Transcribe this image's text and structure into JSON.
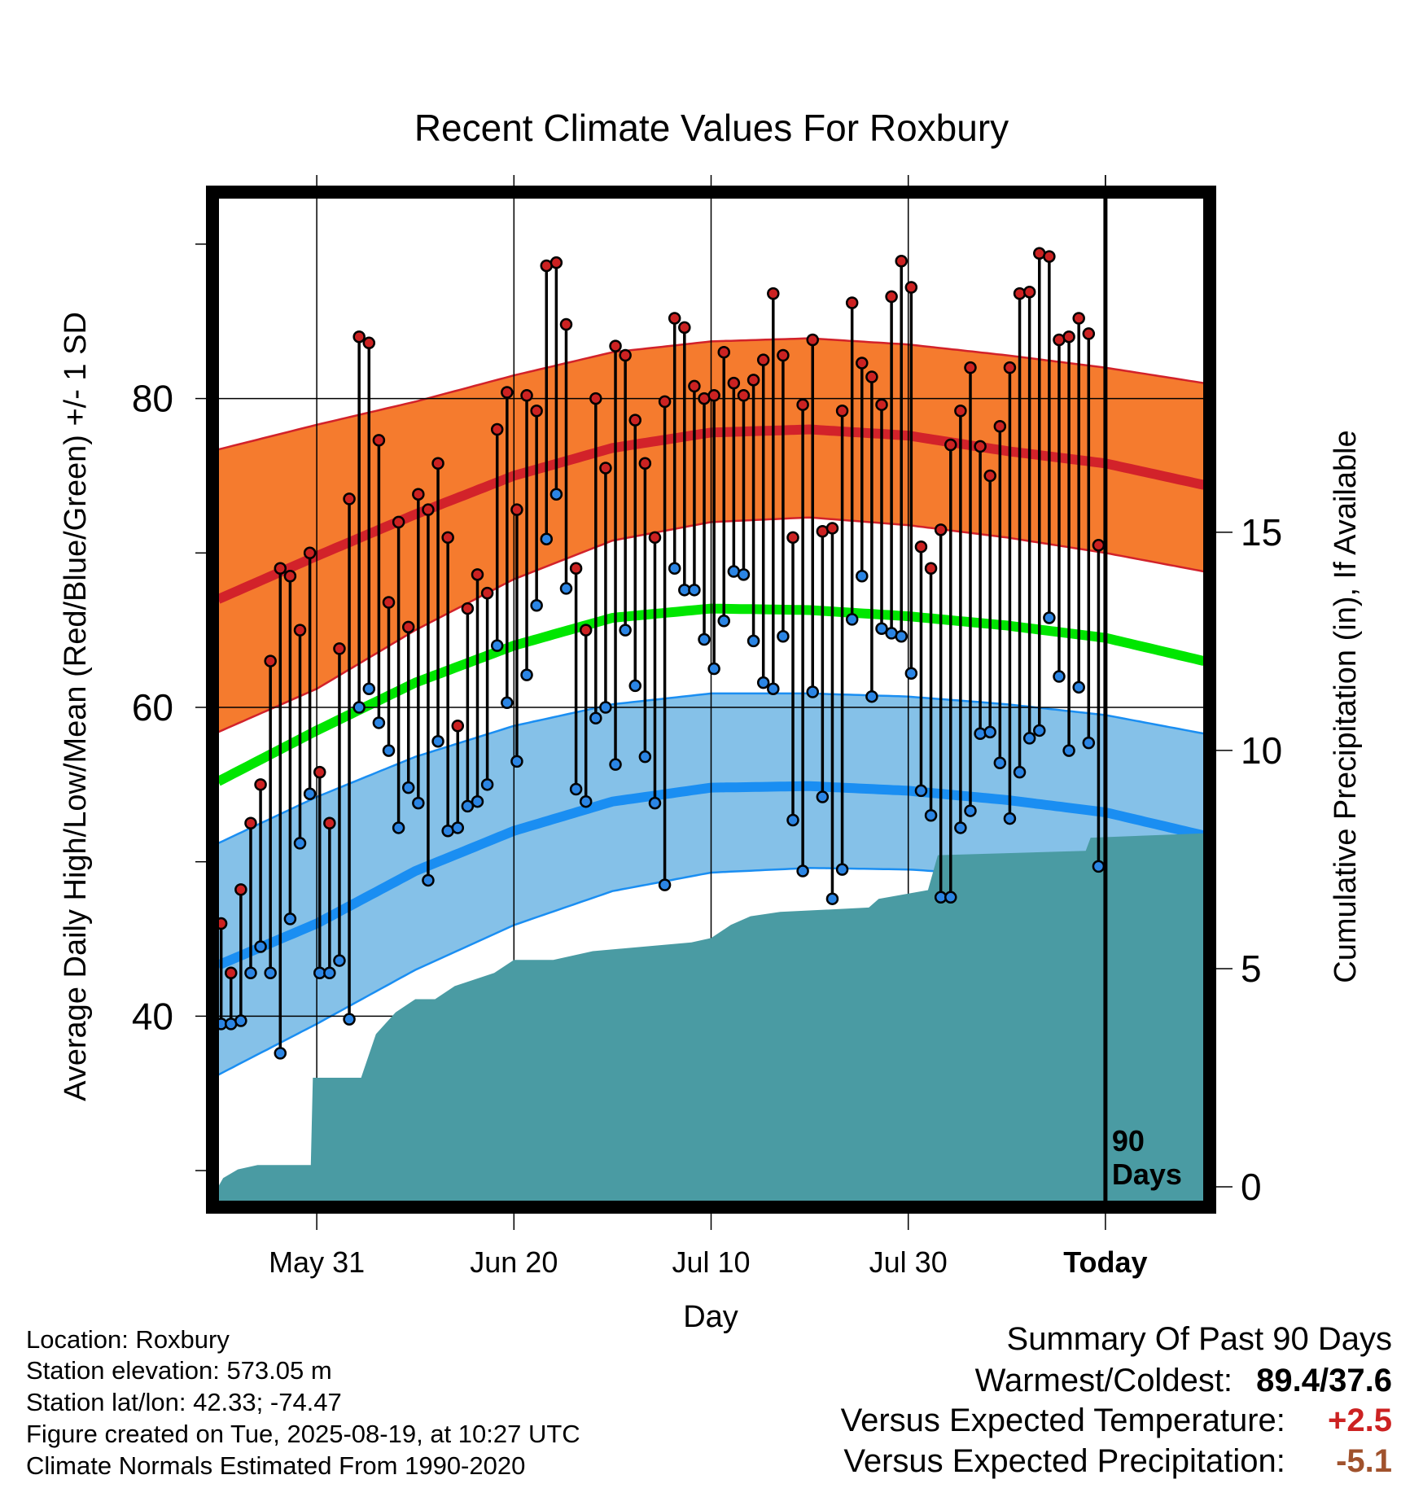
{
  "chart_data": {
    "type": "line",
    "title": "Recent Climate Values For Roxbury",
    "xlabel": "Day",
    "ylabel": "Average Daily High/Low/Mean (Red/Blue/Green) +/- 1 SD",
    "y2label": "Cumulative Precipitation (in), If Available",
    "xlim": [
      0,
      100
    ],
    "ylim": [
      28,
      93
    ],
    "y2lim": [
      0,
      23
    ],
    "x_tick_labels": [
      {
        "label": "May 31",
        "x": 10
      },
      {
        "label": "Jun 20",
        "x": 30
      },
      {
        "label": "Jul 10",
        "x": 50
      },
      {
        "label": "Jul 30",
        "x": 70
      },
      {
        "label": "Today",
        "x": 90
      }
    ],
    "y_ticks_major": [
      40,
      60,
      80
    ],
    "y2_ticks": [
      0,
      5,
      10,
      15
    ],
    "today_x": 90,
    "today_label_line1": "90",
    "today_label_line2": "Days",
    "normal_high_mean": [
      [
        0,
        67.0
      ],
      [
        10,
        69.8
      ],
      [
        20,
        72.5
      ],
      [
        30,
        75.0
      ],
      [
        40,
        76.8
      ],
      [
        50,
        77.8
      ],
      [
        60,
        78.0
      ],
      [
        70,
        77.6
      ],
      [
        80,
        76.6
      ],
      [
        90,
        75.8
      ],
      [
        100,
        74.4
      ]
    ],
    "normal_high_upper": [
      [
        0,
        76.7
      ],
      [
        10,
        78.3
      ],
      [
        20,
        79.8
      ],
      [
        30,
        81.5
      ],
      [
        40,
        83.0
      ],
      [
        50,
        83.7
      ],
      [
        60,
        83.9
      ],
      [
        70,
        83.5
      ],
      [
        80,
        82.8
      ],
      [
        90,
        82.0
      ],
      [
        100,
        81.0
      ]
    ],
    "normal_high_lower": [
      [
        0,
        58.4
      ],
      [
        10,
        61.2
      ],
      [
        20,
        65.0
      ],
      [
        30,
        68.3
      ],
      [
        40,
        70.8
      ],
      [
        50,
        72.0
      ],
      [
        60,
        72.3
      ],
      [
        70,
        71.8
      ],
      [
        80,
        71.0
      ],
      [
        90,
        70.0
      ],
      [
        100,
        68.8
      ]
    ],
    "normal_mean": [
      [
        0,
        55.2
      ],
      [
        10,
        58.5
      ],
      [
        20,
        61.6
      ],
      [
        30,
        64.0
      ],
      [
        40,
        65.8
      ],
      [
        50,
        66.4
      ],
      [
        60,
        66.3
      ],
      [
        70,
        65.9
      ],
      [
        80,
        65.3
      ],
      [
        90,
        64.5
      ],
      [
        100,
        63.0
      ]
    ],
    "normal_low_mean": [
      [
        0,
        43.3
      ],
      [
        10,
        46.0
      ],
      [
        20,
        49.4
      ],
      [
        30,
        52.0
      ],
      [
        40,
        53.9
      ],
      [
        50,
        54.8
      ],
      [
        60,
        54.9
      ],
      [
        70,
        54.6
      ],
      [
        80,
        54.0
      ],
      [
        90,
        53.2
      ],
      [
        100,
        51.7
      ]
    ],
    "normal_low_upper": [
      [
        0,
        51.2
      ],
      [
        10,
        54.2
      ],
      [
        20,
        56.8
      ],
      [
        30,
        58.8
      ],
      [
        40,
        60.2
      ],
      [
        50,
        60.9
      ],
      [
        60,
        60.9
      ],
      [
        70,
        60.7
      ],
      [
        80,
        60.2
      ],
      [
        90,
        59.5
      ],
      [
        100,
        58.3
      ]
    ],
    "normal_low_lower": [
      [
        0,
        36.2
      ],
      [
        10,
        39.5
      ],
      [
        20,
        43.0
      ],
      [
        30,
        45.9
      ],
      [
        40,
        48.1
      ],
      [
        50,
        49.3
      ],
      [
        60,
        49.6
      ],
      [
        70,
        49.5
      ],
      [
        80,
        49.1
      ],
      [
        90,
        48.1
      ],
      [
        100,
        45.8
      ]
    ],
    "daily_high": [
      46,
      42.8,
      48.2,
      52.5,
      55,
      63,
      69,
      68.5,
      65,
      70,
      55.8,
      52.5,
      63.8,
      73.5,
      84,
      83.6,
      77.3,
      66.8,
      72,
      65.2,
      73.8,
      72.8,
      75.8,
      71,
      58.8,
      66.4,
      68.6,
      67.4,
      78,
      80.4,
      72.8,
      80.2,
      79.2,
      88.6,
      88.8,
      84.8,
      69,
      65,
      80,
      75.5,
      83.4,
      82.8,
      78.6,
      75.8,
      71,
      79.8,
      85.2,
      84.6,
      80.8,
      80,
      80.2,
      83,
      81,
      80.2,
      81.2,
      82.5,
      86.8,
      82.8,
      71,
      79.6,
      83.8,
      71.4,
      71.6,
      79.2,
      86.2,
      82.3,
      81.4,
      79.6,
      86.6,
      88.9,
      87.2,
      70.4,
      69,
      71.5,
      77,
      79.2,
      82,
      76.9,
      75,
      78.2,
      82,
      86.8,
      86.9,
      89.4,
      89.2,
      83.8,
      84,
      85.2,
      84.2,
      70.5
    ],
    "daily_low": [
      39.5,
      39.5,
      39.7,
      42.8,
      44.5,
      42.8,
      37.6,
      46.3,
      51.2,
      54.4,
      42.8,
      42.8,
      43.6,
      39.8,
      60,
      61.2,
      59,
      57.2,
      52.2,
      54.8,
      53.8,
      48.8,
      57.8,
      52,
      52.2,
      53.6,
      53.9,
      55,
      64,
      60.3,
      56.5,
      62.1,
      66.6,
      70.9,
      73.8,
      67.7,
      54.7,
      53.9,
      59.3,
      60,
      56.3,
      65,
      61.4,
      56.8,
      53.8,
      48.5,
      69,
      67.6,
      67.6,
      64.4,
      62.5,
      65.6,
      68.8,
      68.6,
      64.3,
      61.6,
      61.2,
      64.6,
      52.7,
      49.4,
      61,
      54.2,
      47.6,
      49.5,
      65.7,
      68.5,
      60.7,
      65.1,
      64.8,
      64.6,
      62.2,
      54.6,
      53,
      47.7,
      47.7,
      52.2,
      53.3,
      58.3,
      58.4,
      56.4,
      52.8,
      55.8,
      58,
      58.5,
      65.8,
      62,
      57.2,
      61.3,
      57.7,
      49.7
    ],
    "precip_cumulative": [
      [
        0,
        0
      ],
      [
        0.5,
        0.2
      ],
      [
        2,
        0.4
      ],
      [
        4,
        0.5
      ],
      [
        5,
        0.5
      ],
      [
        9.4,
        0.5
      ],
      [
        9.6,
        2.5
      ],
      [
        14.5,
        2.5
      ],
      [
        16,
        3.5
      ],
      [
        18,
        4
      ],
      [
        20,
        4.3
      ],
      [
        22,
        4.3
      ],
      [
        24,
        4.6
      ],
      [
        28,
        4.9
      ],
      [
        30,
        5.2
      ],
      [
        34,
        5.2
      ],
      [
        38,
        5.4
      ],
      [
        48,
        5.6
      ],
      [
        50,
        5.7
      ],
      [
        52,
        6.0
      ],
      [
        54,
        6.2
      ],
      [
        57,
        6.3
      ],
      [
        66,
        6.4
      ],
      [
        67,
        6.6
      ],
      [
        72,
        6.8
      ],
      [
        73,
        7.6
      ],
      [
        88,
        7.7
      ],
      [
        88.5,
        8.0
      ],
      [
        100,
        8.1
      ]
    ],
    "colors": {
      "high_band": "#f57b2e",
      "high_line": "#d2222a",
      "mean_line": "#00e600",
      "low_band": "#85c1e8",
      "low_line": "#1a8ef2",
      "precip": "#4a9ba3",
      "high_dot": "#cc2222",
      "low_dot": "#2b85e4"
    }
  },
  "info": {
    "location": "Location: Roxbury",
    "elevation": "Station elevation: 573.05 m",
    "latlon": "Station lat/lon: 42.33; -74.47",
    "created": "Figure created on Tue, 2025-08-19, at 10:27 UTC",
    "normals": "Climate Normals Estimated From 1990-2020"
  },
  "summary": {
    "title": "Summary Of Past 90 Days",
    "warmest_label": "Warmest/Coldest:",
    "warmest_value": "89.4/37.6",
    "temp_label": "Versus Expected Temperature:",
    "temp_value": "+2.5",
    "temp_color": "#cc2222",
    "precip_label": "Versus Expected Precipitation:",
    "precip_value": "-5.1",
    "precip_color": "#a0522d"
  }
}
